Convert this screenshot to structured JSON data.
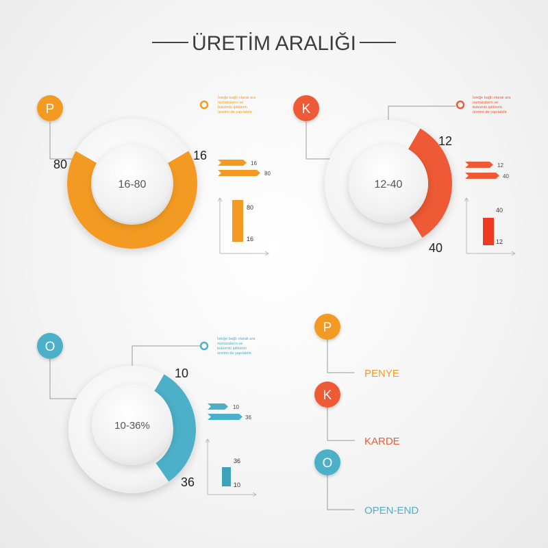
{
  "title": "ÜRETİM ARALIĞI",
  "note_text": [
    "İsteğe bağlı olarak ara",
    "numaraların ve",
    "bükümlü ipliklerin",
    "üretimi de yapılabilir."
  ],
  "colors": {
    "penye": "#f39a22",
    "karde": "#ee5a35",
    "openend": "#4cb0c8",
    "disc": "#f6f6f6",
    "axis": "#b8b8b8",
    "text": "#333333"
  },
  "chart_data": [
    {
      "type": "donut",
      "id": "penye",
      "badge": "P",
      "center_label": "16-80",
      "min": 16,
      "max": 80,
      "min_label": "16",
      "max_label": "80",
      "arrows": [
        {
          "label": "16"
        },
        {
          "label": "80"
        }
      ],
      "bar": {
        "from_label": "16",
        "to_label": "80"
      }
    },
    {
      "type": "donut",
      "id": "karde",
      "badge": "K",
      "center_label": "12-40",
      "min": 12,
      "max": 40,
      "min_label": "12",
      "max_label": "40",
      "arrows": [
        {
          "label": "12"
        },
        {
          "label": "40"
        }
      ],
      "bar": {
        "from_label": "12",
        "to_label": "40"
      }
    },
    {
      "type": "donut",
      "id": "openend",
      "badge": "O",
      "center_label": "10-36%",
      "min": 10,
      "max": 36,
      "min_label": "10",
      "max_label": "36",
      "arrows": [
        {
          "label": "10"
        },
        {
          "label": "36"
        }
      ],
      "bar": {
        "from_label": "10",
        "to_label": "36"
      }
    }
  ],
  "legend": [
    {
      "letter": "P",
      "label": "PENYE",
      "color": "#f39a22"
    },
    {
      "letter": "K",
      "label": "KARDE",
      "color": "#ee5a35"
    },
    {
      "letter": "O",
      "label": "OPEN-END",
      "color": "#4cb0c8"
    }
  ]
}
